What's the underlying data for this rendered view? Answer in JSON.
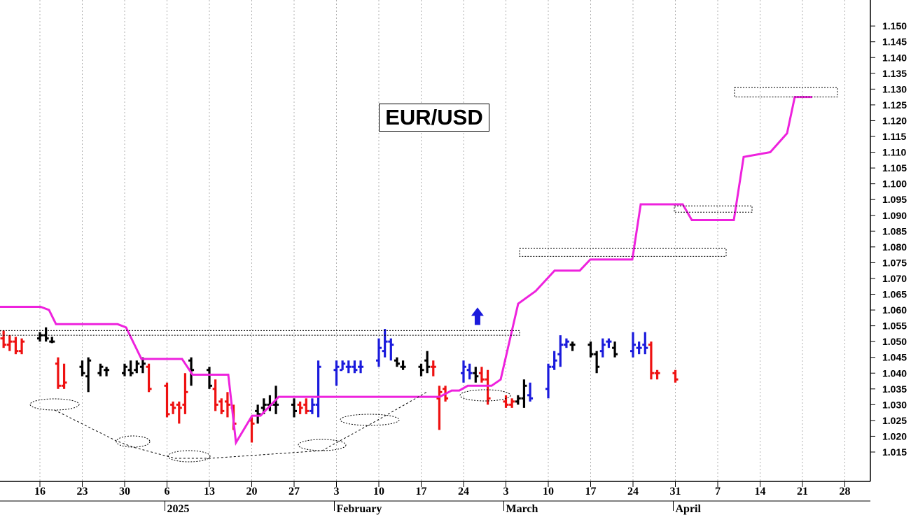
{
  "chart_data": {
    "type": "bar",
    "title": "EUR/USD",
    "ylim": [
      1.0115,
      1.1555
    ],
    "y_ticks": [
      "1.015",
      "1.020",
      "1.025",
      "1.030",
      "1.035",
      "1.040",
      "1.045",
      "1.050",
      "1.055",
      "1.060",
      "1.065",
      "1.070",
      "1.075",
      "1.080",
      "1.085",
      "1.090",
      "1.095",
      "1.100",
      "1.105",
      "1.110",
      "1.115",
      "1.120",
      "1.125",
      "1.130",
      "1.135",
      "1.140",
      "1.145",
      "1.150"
    ],
    "x_day_ticks": [
      {
        "label": "16",
        "date": "2024-12-16"
      },
      {
        "label": "23",
        "date": "2024-12-23"
      },
      {
        "label": "30",
        "date": "2024-12-30"
      },
      {
        "label": "6",
        "date": "2025-01-06"
      },
      {
        "label": "13",
        "date": "2025-01-13"
      },
      {
        "label": "20",
        "date": "2025-01-20"
      },
      {
        "label": "27",
        "date": "2025-01-27"
      },
      {
        "label": "3",
        "date": "2025-02-03"
      },
      {
        "label": "10",
        "date": "2025-02-10"
      },
      {
        "label": "17",
        "date": "2025-02-17"
      },
      {
        "label": "24",
        "date": "2025-02-24"
      },
      {
        "label": "3",
        "date": "2025-03-03"
      },
      {
        "label": "10",
        "date": "2025-03-10"
      },
      {
        "label": "17",
        "date": "2025-03-17"
      },
      {
        "label": "24",
        "date": "2025-03-24"
      },
      {
        "label": "31",
        "date": "2025-03-31"
      },
      {
        "label": "7",
        "date": "2025-04-07"
      },
      {
        "label": "14",
        "date": "2025-04-14"
      },
      {
        "label": "21",
        "date": "2025-04-21"
      },
      {
        "label": "28",
        "date": "2025-04-28"
      }
    ],
    "x_month_labels": [
      {
        "label": "2025",
        "date": "2025-01-06"
      },
      {
        "label": "February",
        "date": "2025-02-03"
      },
      {
        "label": "March",
        "date": "2025-03-03"
      },
      {
        "label": "April",
        "date": "2025-03-31"
      }
    ],
    "grid": "vertical-dotted",
    "bar_colors": {
      "up": "#1a1adc",
      "down": "#ee1111",
      "neutral": "#000000"
    },
    "stop_line_color": "#ee22dd",
    "marker_color": "#1a1adc",
    "bars": [
      [
        "2024-12-09",
        1.053,
        1.0545,
        1.05,
        1.051,
        "down"
      ],
      [
        "2024-12-10",
        1.051,
        1.0535,
        1.048,
        1.049,
        "down"
      ],
      [
        "2024-12-11",
        1.049,
        1.052,
        1.047,
        1.05,
        "down"
      ],
      [
        "2024-12-12",
        1.05,
        1.0515,
        1.046,
        1.047,
        "down"
      ],
      [
        "2024-12-13",
        1.047,
        1.051,
        1.046,
        1.05,
        "down"
      ],
      [
        "2024-12-16",
        1.051,
        1.053,
        1.05,
        1.052,
        "neutral"
      ],
      [
        "2024-12-17",
        1.052,
        1.0545,
        1.05,
        1.051,
        "neutral"
      ],
      [
        "2024-12-18",
        1.05,
        1.0515,
        1.0495,
        1.05,
        "neutral"
      ],
      [
        "2024-12-19",
        1.043,
        1.045,
        1.035,
        1.036,
        "down"
      ],
      [
        "2024-12-20",
        1.036,
        1.043,
        1.035,
        1.037,
        "down"
      ],
      [
        "2024-12-23",
        1.042,
        1.044,
        1.039,
        1.04,
        "neutral"
      ],
      [
        "2024-12-24",
        1.039,
        1.045,
        1.034,
        1.044,
        "neutral"
      ],
      [
        "2024-12-26",
        1.04,
        1.043,
        1.039,
        1.042,
        "neutral"
      ],
      [
        "2024-12-27",
        1.041,
        1.042,
        1.039,
        1.041,
        "neutral"
      ],
      [
        "2024-12-30",
        1.04,
        1.043,
        1.039,
        1.042,
        "neutral"
      ],
      [
        "2024-12-31",
        1.041,
        1.044,
        1.039,
        1.04,
        "neutral"
      ],
      [
        "2025-01-01",
        1.041,
        1.044,
        1.04,
        1.043,
        "neutral"
      ],
      [
        "2025-01-02",
        1.042,
        1.045,
        1.04,
        1.043,
        "neutral"
      ],
      [
        "2025-01-03",
        1.042,
        1.043,
        1.034,
        1.035,
        "down"
      ],
      [
        "2025-01-06",
        1.036,
        1.037,
        1.026,
        1.027,
        "down"
      ],
      [
        "2025-01-07",
        1.03,
        1.031,
        1.027,
        1.029,
        "down"
      ],
      [
        "2025-01-08",
        1.03,
        1.031,
        1.024,
        1.029,
        "down"
      ],
      [
        "2025-01-09",
        1.03,
        1.04,
        1.027,
        1.034,
        "down"
      ],
      [
        "2025-01-10",
        1.044,
        1.045,
        1.036,
        1.041,
        "neutral"
      ],
      [
        "2025-01-13",
        1.041,
        1.042,
        1.035,
        1.036,
        "neutral"
      ],
      [
        "2025-01-14",
        1.035,
        1.038,
        1.028,
        1.03,
        "down"
      ],
      [
        "2025-01-15",
        1.031,
        1.032,
        1.027,
        1.028,
        "down"
      ],
      [
        "2025-01-16",
        1.031,
        1.034,
        1.026,
        1.03,
        "down"
      ],
      [
        "2025-01-17",
        1.029,
        1.03,
        1.022,
        1.024,
        "down"
      ],
      [
        "2025-01-20",
        1.025,
        1.026,
        1.018,
        1.024,
        "down"
      ],
      [
        "2025-01-21",
        1.028,
        1.03,
        1.024,
        1.027,
        "neutral"
      ],
      [
        "2025-01-22",
        1.029,
        1.032,
        1.027,
        1.03,
        "neutral"
      ],
      [
        "2025-01-23",
        1.03,
        1.033,
        1.028,
        1.03,
        "neutral"
      ],
      [
        "2025-01-24",
        1.03,
        1.036,
        1.027,
        1.03,
        "neutral"
      ],
      [
        "2025-01-27",
        1.03,
        1.032,
        1.026,
        1.028,
        "neutral"
      ],
      [
        "2025-01-28",
        1.03,
        1.031,
        1.027,
        1.029,
        "down"
      ],
      [
        "2025-01-29",
        1.03,
        1.032,
        1.027,
        1.028,
        "down"
      ],
      [
        "2025-01-30",
        1.028,
        1.032,
        1.027,
        1.03,
        "blue"
      ],
      [
        "2025-01-31",
        1.03,
        1.044,
        1.026,
        1.042,
        "blue"
      ],
      [
        "2025-02-03",
        1.041,
        1.044,
        1.036,
        1.042,
        "blue"
      ],
      [
        "2025-02-04",
        1.041,
        1.044,
        1.041,
        1.043,
        "blue"
      ],
      [
        "2025-02-05",
        1.042,
        1.044,
        1.04,
        1.042,
        "blue"
      ],
      [
        "2025-02-06",
        1.042,
        1.044,
        1.04,
        1.041,
        "blue"
      ],
      [
        "2025-02-07",
        1.042,
        1.044,
        1.04,
        1.042,
        "blue"
      ],
      [
        "2025-02-10",
        1.044,
        1.051,
        1.042,
        1.048,
        "blue"
      ],
      [
        "2025-02-11",
        1.047,
        1.054,
        1.045,
        1.05,
        "blue"
      ],
      [
        "2025-02-12",
        1.05,
        1.051,
        1.044,
        1.049,
        "blue"
      ],
      [
        "2025-02-13",
        1.044,
        1.045,
        1.042,
        1.043,
        "neutral"
      ],
      [
        "2025-02-14",
        1.042,
        1.044,
        1.041,
        1.042,
        "neutral"
      ],
      [
        "2025-02-17",
        1.042,
        1.043,
        1.039,
        1.041,
        "neutral"
      ],
      [
        "2025-02-18",
        1.044,
        1.047,
        1.04,
        1.042,
        "neutral"
      ],
      [
        "2025-02-19",
        1.042,
        1.044,
        1.039,
        1.042,
        "down"
      ],
      [
        "2025-02-20",
        1.032,
        1.036,
        1.022,
        1.034,
        "down"
      ],
      [
        "2025-02-21",
        1.035,
        1.036,
        1.031,
        1.032,
        "down"
      ],
      [
        "2025-02-24",
        1.04,
        1.044,
        1.037,
        1.042,
        "blue"
      ],
      [
        "2025-02-25",
        1.041,
        1.043,
        1.038,
        1.04,
        "blue"
      ],
      [
        "2025-02-26",
        1.04,
        1.042,
        1.037,
        1.039,
        "neutral"
      ],
      [
        "2025-02-27",
        1.04,
        1.042,
        1.037,
        1.038,
        "down"
      ],
      [
        "2025-02-28",
        1.038,
        1.041,
        1.03,
        1.032,
        "down"
      ],
      [
        "2025-03-03",
        1.031,
        1.033,
        1.029,
        1.03,
        "down"
      ],
      [
        "2025-03-04",
        1.03,
        1.032,
        1.029,
        1.031,
        "down"
      ],
      [
        "2025-03-05",
        1.031,
        1.033,
        1.03,
        1.032,
        "neutral"
      ],
      [
        "2025-03-06",
        1.032,
        1.038,
        1.029,
        1.036,
        "neutral"
      ],
      [
        "2025-03-07",
        1.033,
        1.037,
        1.031,
        1.032,
        "blue"
      ],
      [
        "2025-03-10",
        1.035,
        1.043,
        1.032,
        1.042,
        "blue"
      ],
      [
        "2025-03-11",
        1.042,
        1.047,
        1.041,
        1.044,
        "blue"
      ],
      [
        "2025-03-12",
        1.046,
        1.052,
        1.042,
        1.049,
        "blue"
      ],
      [
        "2025-03-13",
        1.049,
        1.051,
        1.048,
        1.05,
        "blue"
      ],
      [
        "2025-03-14",
        1.049,
        1.05,
        1.047,
        1.049,
        "neutral"
      ],
      [
        "2025-03-17",
        1.049,
        1.05,
        1.045,
        1.046,
        "neutral"
      ],
      [
        "2025-03-18",
        1.046,
        1.047,
        1.04,
        1.042,
        "neutral"
      ],
      [
        "2025-03-19",
        1.047,
        1.051,
        1.045,
        1.049,
        "blue"
      ],
      [
        "2025-03-20",
        1.05,
        1.051,
        1.048,
        1.05,
        "blue"
      ],
      [
        "2025-03-21",
        1.048,
        1.05,
        1.045,
        1.046,
        "neutral"
      ],
      [
        "2025-03-24",
        1.047,
        1.053,
        1.045,
        1.049,
        "blue"
      ],
      [
        "2025-03-25",
        1.048,
        1.05,
        1.046,
        1.048,
        "blue"
      ],
      [
        "2025-03-26",
        1.049,
        1.053,
        1.046,
        1.048,
        "blue"
      ],
      [
        "2025-03-27",
        1.049,
        1.05,
        1.038,
        1.04,
        "down"
      ],
      [
        "2025-03-28",
        1.04,
        1.041,
        1.038,
        1.04,
        "down"
      ],
      [
        "2025-03-31",
        1.04,
        1.041,
        1.037,
        1.038,
        "down"
      ]
    ],
    "markers": [
      {
        "type": "up-arrow",
        "date": "2025-02-27",
        "value": 1.0575
      }
    ]
  }
}
